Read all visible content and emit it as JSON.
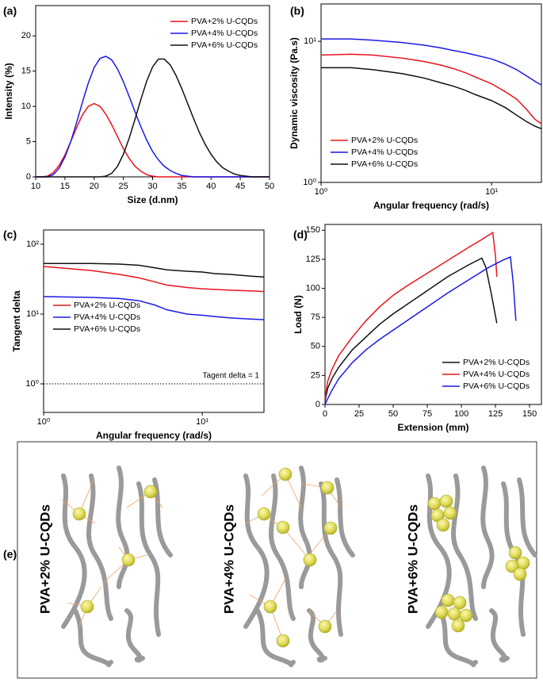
{
  "chart_data": [
    {
      "type": "line",
      "panel": "(a)",
      "xlabel": "Size (d.nm)",
      "ylabel": "Intensity (%)",
      "xlim": [
        10,
        50
      ],
      "ylim": [
        0,
        24.3
      ],
      "xticks": [
        10,
        15,
        20,
        25,
        30,
        35,
        40,
        45,
        50
      ],
      "yticks": [
        0,
        5,
        10,
        15,
        20
      ],
      "legend": "upper right",
      "x": [
        10,
        11,
        12,
        13,
        14,
        15,
        16,
        17,
        18,
        19,
        20,
        21,
        22,
        23,
        24,
        25,
        26,
        27,
        28,
        29,
        30,
        31,
        32,
        33,
        34,
        35,
        36,
        37,
        38,
        39,
        40,
        41,
        42,
        43,
        44,
        45,
        46,
        47,
        48,
        49,
        50
      ],
      "series": [
        {
          "name": "PVA+2% U-CQDs",
          "color": "#e8141b",
          "values": [
            0,
            0,
            0.1,
            0.6,
            1.6,
            3.1,
            5.0,
            7.0,
            8.8,
            10.0,
            10.4,
            10.0,
            8.9,
            7.4,
            5.7,
            4.0,
            2.6,
            1.5,
            0.8,
            0.3,
            0.1,
            0,
            0,
            0,
            0,
            0,
            0,
            0,
            0,
            0,
            0,
            0,
            0,
            0,
            0,
            0,
            0,
            0,
            0,
            0,
            0
          ]
        },
        {
          "name": "PVA+4% U-CQDs",
          "color": "#1a1ae6",
          "values": [
            0,
            0,
            0,
            0.3,
            1.2,
            2.8,
            5.0,
            7.7,
            10.6,
            13.3,
            15.5,
            16.8,
            17.1,
            16.6,
            15.3,
            13.5,
            11.4,
            9.2,
            7.1,
            5.2,
            3.6,
            2.4,
            1.5,
            0.9,
            0.5,
            0.2,
            0.1,
            0,
            0,
            0,
            0,
            0,
            0,
            0,
            0,
            0,
            0,
            0,
            0,
            0,
            0
          ]
        },
        {
          "name": "PVA+6% U-CQDs",
          "color": "#111111",
          "values": [
            0,
            0,
            0,
            0,
            0,
            0,
            0,
            0,
            0,
            0,
            0,
            0,
            0.1,
            0.5,
            1.5,
            3.2,
            5.5,
            8.2,
            11.0,
            13.6,
            15.6,
            16.7,
            16.7,
            15.9,
            14.4,
            12.5,
            10.4,
            8.3,
            6.3,
            4.6,
            3.2,
            2.1,
            1.3,
            0.8,
            0.4,
            0.2,
            0.1,
            0,
            0,
            0,
            0
          ]
        }
      ]
    },
    {
      "type": "line",
      "panel": "(b)",
      "xlabel": "Angular frequency (rad/s)",
      "ylabel": "Dynamic viscosity (Pa.s)",
      "xlog": true,
      "ylog": true,
      "xlim": [
        1,
        19.6
      ],
      "ylim": [
        1,
        18.4
      ],
      "xticks": [
        {
          "value": 1,
          "label": "10⁰"
        },
        {
          "value": 10,
          "label": "10¹"
        }
      ],
      "yticks": [
        {
          "value": 1,
          "label": "10⁰"
        },
        {
          "value": 10,
          "label": "10¹"
        }
      ],
      "legend": "lower left",
      "x": [
        1,
        1.5,
        2,
        3,
        4,
        5,
        6,
        7,
        8,
        10,
        12,
        14,
        16,
        18,
        19.6
      ],
      "series": [
        {
          "name": "PVA+2% U-CQDs",
          "color": "#e8141b",
          "values": [
            8.0,
            8.1,
            8.0,
            7.6,
            7.2,
            6.8,
            6.4,
            6.0,
            5.6,
            5.0,
            4.4,
            3.9,
            3.3,
            2.8,
            2.6
          ]
        },
        {
          "name": "PVA+4% U-CQDs",
          "color": "#1a1ae6",
          "values": [
            10.4,
            10.4,
            10.2,
            9.8,
            9.4,
            9.0,
            8.6,
            8.3,
            8.0,
            7.5,
            6.9,
            6.3,
            5.7,
            5.2,
            4.9
          ]
        },
        {
          "name": "PVA+6% U-CQDs",
          "color": "#111111",
          "values": [
            6.5,
            6.5,
            6.3,
            5.9,
            5.5,
            5.1,
            4.8,
            4.5,
            4.2,
            3.8,
            3.4,
            3.0,
            2.7,
            2.5,
            2.4
          ]
        }
      ]
    },
    {
      "type": "line",
      "panel": "(c)",
      "xlabel": "Angular frequency (rad/s)",
      "ylabel": "Tangent delta",
      "xlog": true,
      "ylog": true,
      "xlim": [
        1,
        24.5
      ],
      "ylim": [
        0.39,
        160
      ],
      "xticks": [
        {
          "value": 1,
          "label": "10⁰"
        },
        {
          "value": 10,
          "label": "10¹"
        }
      ],
      "yticks": [
        {
          "value": 1,
          "label": "10⁰"
        },
        {
          "value": 10,
          "label": "10¹"
        },
        {
          "value": 100,
          "label": "10²"
        }
      ],
      "legend": "center left",
      "annotation": {
        "text": "Tagent delta = 1",
        "y": 1
      },
      "x": [
        1,
        2,
        3,
        4,
        5,
        6,
        8,
        10,
        12,
        15,
        20,
        24.5
      ],
      "series": [
        {
          "name": "PVA+2% U-CQDs",
          "color": "#e8141b",
          "values": [
            48,
            42,
            37,
            33,
            29,
            26,
            24,
            23,
            22.5,
            22,
            21.5,
            21
          ]
        },
        {
          "name": "PVA+4% U-CQDs",
          "color": "#1a1ae6",
          "values": [
            17.8,
            17.3,
            16.7,
            15.5,
            13.5,
            11.5,
            10,
            9.6,
            9.2,
            8.8,
            8.5,
            8.3
          ]
        },
        {
          "name": "PVA+6% U-CQDs",
          "color": "#111111",
          "values": [
            53,
            53,
            52,
            50,
            46,
            43,
            41,
            40,
            38,
            37,
            35,
            34
          ]
        }
      ]
    },
    {
      "type": "line",
      "panel": "(d)",
      "xlabel": "Extension (mm)",
      "ylabel": "Load (N)",
      "xlim": [
        0,
        158.7
      ],
      "ylim": [
        0,
        155
      ],
      "xticks": [
        0,
        25,
        50,
        75,
        100,
        125,
        150
      ],
      "yticks": [
        0,
        25,
        50,
        75,
        100,
        125,
        150
      ],
      "legend": "lower right",
      "series": [
        {
          "name": "PVA+2% U-CQDs",
          "color": "#111111",
          "x": [
            0,
            2,
            5,
            10,
            20,
            30,
            40,
            50,
            60,
            75,
            90,
            105,
            115,
            118,
            122,
            126
          ],
          "values": [
            3,
            14,
            22,
            32,
            47,
            58,
            69,
            78,
            86,
            98,
            110,
            120,
            126,
            118,
            95,
            70
          ]
        },
        {
          "name": "PVA+4% U-CQDs",
          "color": "#e8141b",
          "x": [
            0,
            2,
            5,
            10,
            20,
            30,
            40,
            50,
            60,
            75,
            90,
            105,
            115,
            123,
            125,
            126
          ],
          "values": [
            5,
            20,
            30,
            42,
            58,
            72,
            84,
            94,
            102,
            113,
            124,
            135,
            142,
            148,
            128,
            110
          ]
        },
        {
          "name": "PVA+6% U-CQDs",
          "color": "#1a1ae6",
          "x": [
            0,
            2,
            5,
            10,
            20,
            30,
            40,
            50,
            60,
            75,
            90,
            105,
            120,
            130,
            136,
            138,
            140
          ],
          "values": [
            0,
            5,
            12,
            22,
            36,
            47,
            56,
            64,
            72,
            84,
            96,
            107,
            118,
            124,
            127,
            105,
            72
          ]
        }
      ]
    }
  ],
  "schematic": {
    "label": "(e)",
    "labels": [
      "PVA+2% U-CQDs",
      "PVA+4% U-CQDs",
      "PVA+6% U-CQDs"
    ]
  }
}
